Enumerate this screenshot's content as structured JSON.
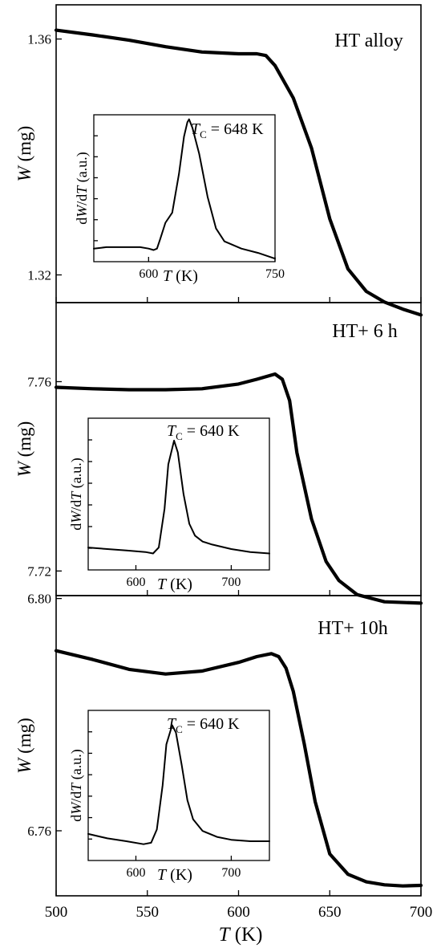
{
  "figure": {
    "x_axis": {
      "label_italic": "T",
      "label_rest": " (K)",
      "range": [
        500,
        700
      ],
      "ticks": [
        "500",
        "550",
        "600",
        "650",
        "700"
      ]
    }
  },
  "chart_data": [
    {
      "type": "line",
      "panel": "top",
      "title": "HT alloy",
      "ylabel_italic": "W",
      "ylabel_rest": " (mg)",
      "xlim": [
        500,
        700
      ],
      "ylim": [
        1.3153,
        1.3658
      ],
      "yticks": [
        1.32,
        1.36
      ],
      "ytick_labels": [
        "1.32",
        "1.36"
      ],
      "series": [
        {
          "x": [
            500,
            520,
            540,
            560,
            580,
            600,
            610,
            615,
            620,
            630,
            640,
            650,
            660,
            670,
            680,
            690,
            700
          ],
          "y": [
            1.3615,
            1.3607,
            1.3598,
            1.3587,
            1.3578,
            1.3575,
            1.3575,
            1.3572,
            1.3555,
            1.35,
            1.3415,
            1.3295,
            1.321,
            1.3172,
            1.3154,
            1.3142,
            1.3132
          ]
        }
      ],
      "inset": {
        "type": "line",
        "ylabel": "dW/dT (a.u.)",
        "xlabel_italic": "T",
        "xlabel_rest": " (K)",
        "xlim": [
          535,
          750
        ],
        "ylim": [
          0,
          1
        ],
        "xticks": [
          600,
          750
        ],
        "xtick_labels": [
          "600",
          "750"
        ],
        "annotation_sym": "T",
        "annotation_sub": "C",
        "annotation_rest": " = 648 K",
        "x": [
          535,
          550,
          570,
          590,
          600,
          606,
          610,
          614,
          620,
          628,
          636,
          642,
          646,
          648,
          652,
          660,
          670,
          680,
          690,
          710,
          730,
          750
        ],
        "y": [
          0.08,
          0.09,
          0.09,
          0.09,
          0.08,
          0.07,
          0.08,
          0.15,
          0.26,
          0.33,
          0.6,
          0.86,
          0.96,
          0.98,
          0.92,
          0.74,
          0.44,
          0.22,
          0.13,
          0.08,
          0.05,
          0.01
        ]
      }
    },
    {
      "type": "line",
      "panel": "middle",
      "title": "HT+ 6 h",
      "ylabel_italic": "W",
      "ylabel_rest": " (mg)",
      "xlim": [
        500,
        700
      ],
      "ylim": [
        7.7148,
        7.7767
      ],
      "yticks": [
        7.72,
        7.76
      ],
      "ytick_labels": [
        "7.72",
        "7.76"
      ],
      "series": [
        {
          "x": [
            500,
            520,
            540,
            560,
            580,
            600,
            610,
            620,
            624,
            628,
            632,
            640,
            648,
            655,
            665,
            680,
            700
          ],
          "y": [
            7.7588,
            7.7585,
            7.7583,
            7.7583,
            7.7585,
            7.7595,
            7.7605,
            7.7616,
            7.7605,
            7.756,
            7.745,
            7.731,
            7.722,
            7.718,
            7.715,
            7.7135,
            7.7132
          ]
        }
      ],
      "inset": {
        "type": "line",
        "ylabel": "dW/dT (a.u.)",
        "xlabel_italic": "T",
        "xlabel_rest": " (K)",
        "xlim": [
          550,
          740
        ],
        "ylim": [
          0,
          1
        ],
        "xticks": [
          600,
          700
        ],
        "xtick_labels": [
          "600",
          "700"
        ],
        "annotation_sym": "T",
        "annotation_sub": "C",
        "annotation_rest": " = 640 K",
        "x": [
          550,
          570,
          590,
          610,
          618,
          624,
          630,
          634,
          640,
          644,
          650,
          656,
          662,
          670,
          680,
          700,
          720,
          740
        ],
        "y": [
          0.14,
          0.13,
          0.12,
          0.11,
          0.1,
          0.14,
          0.4,
          0.7,
          0.86,
          0.78,
          0.5,
          0.3,
          0.22,
          0.18,
          0.16,
          0.13,
          0.11,
          0.1
        ]
      }
    },
    {
      "type": "line",
      "panel": "bottom",
      "title": "HT+ 10h",
      "ylabel_italic": "W",
      "ylabel_rest": " (mg)",
      "xlim": [
        500,
        700
      ],
      "ylim": [
        6.7488,
        6.8005
      ],
      "yticks": [
        6.76,
        6.8
      ],
      "ytick_labels": [
        "6.76",
        "6.80"
      ],
      "series": [
        {
          "x": [
            500,
            520,
            540,
            560,
            580,
            600,
            610,
            618,
            622,
            626,
            630,
            636,
            642,
            650,
            660,
            670,
            680,
            690,
            700
          ],
          "y": [
            6.791,
            6.7895,
            6.7878,
            6.787,
            6.7875,
            6.789,
            6.79,
            6.7905,
            6.79,
            6.788,
            6.784,
            6.775,
            6.765,
            6.756,
            6.7525,
            6.7512,
            6.7507,
            6.7505,
            6.7506
          ]
        }
      ],
      "inset": {
        "type": "line",
        "ylabel": "dW/dT (a.u.)",
        "xlabel_italic": "T",
        "xlabel_rest": " (K)",
        "xlim": [
          550,
          740
        ],
        "ylim": [
          0,
          1
        ],
        "xticks": [
          600,
          700
        ],
        "xtick_labels": [
          "600",
          "700"
        ],
        "annotation_sym": "T",
        "annotation_sub": "C",
        "annotation_rest": " = 640 K",
        "x": [
          550,
          570,
          590,
          608,
          616,
          622,
          628,
          632,
          638,
          642,
          648,
          654,
          660,
          670,
          685,
          700,
          720,
          740
        ],
        "y": [
          0.17,
          0.14,
          0.12,
          0.1,
          0.11,
          0.2,
          0.5,
          0.78,
          0.91,
          0.86,
          0.64,
          0.4,
          0.27,
          0.19,
          0.15,
          0.13,
          0.12,
          0.12
        ]
      }
    }
  ]
}
